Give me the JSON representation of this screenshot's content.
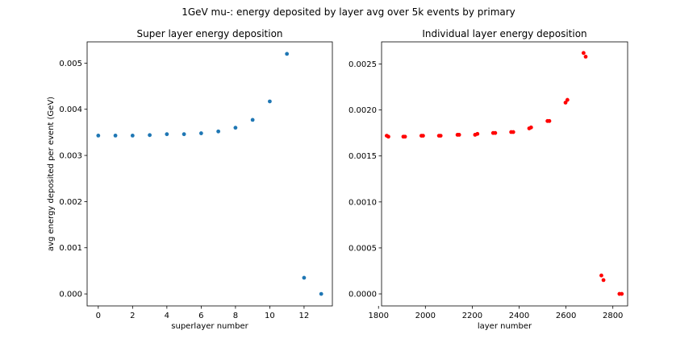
{
  "figure": {
    "suptitle": "1GeV mu-: energy deposited by layer avg over 5k events by primary"
  },
  "chart_data": [
    {
      "type": "scatter",
      "title": "Super layer energy deposition",
      "xlabel": "superlayer number",
      "ylabel": "avg energy deposited per event (GeV)",
      "xlim": [
        -0.65,
        13.65
      ],
      "ylim": [
        -0.00026,
        0.00546
      ],
      "xticks": [
        0,
        2,
        4,
        6,
        8,
        10,
        12
      ],
      "xtick_labels": [
        "0",
        "2",
        "4",
        "6",
        "8",
        "10",
        "12"
      ],
      "yticks": [
        0.0,
        0.001,
        0.002,
        0.003,
        0.004,
        0.005
      ],
      "ytick_labels": [
        "0.000",
        "0.001",
        "0.002",
        "0.003",
        "0.004",
        "0.005"
      ],
      "grid": false,
      "marker_color": "#1f77b4",
      "points": [
        {
          "x": 0,
          "y": 0.00343
        },
        {
          "x": 1,
          "y": 0.00343
        },
        {
          "x": 2,
          "y": 0.00343
        },
        {
          "x": 3,
          "y": 0.00344
        },
        {
          "x": 4,
          "y": 0.00346
        },
        {
          "x": 5,
          "y": 0.00346
        },
        {
          "x": 6,
          "y": 0.00348
        },
        {
          "x": 7,
          "y": 0.00352
        },
        {
          "x": 8,
          "y": 0.0036
        },
        {
          "x": 9,
          "y": 0.00377
        },
        {
          "x": 10,
          "y": 0.00417
        },
        {
          "x": 11,
          "y": 0.0052
        },
        {
          "x": 12,
          "y": 0.00035
        },
        {
          "x": 13,
          "y": 0.0
        }
      ]
    },
    {
      "type": "scatter",
      "title": "Individual layer energy deposition",
      "xlabel": "layer number",
      "ylabel": "",
      "xlim": [
        1813,
        2863
      ],
      "ylim": [
        -0.000131,
        0.002741
      ],
      "xticks": [
        1800,
        2000,
        2200,
        2400,
        2600,
        2800
      ],
      "xtick_labels": [
        "1800",
        "2000",
        "2200",
        "2400",
        "2600",
        "2800"
      ],
      "yticks": [
        0.0,
        0.0005,
        0.001,
        0.0015,
        0.002,
        0.0025
      ],
      "ytick_labels": [
        "0.0000",
        "0.0005",
        "0.0010",
        "0.0015",
        "0.0020",
        "0.0025"
      ],
      "grid": false,
      "marker_color": "#ff0000",
      "points": [
        {
          "x": 1835,
          "y": 0.00172
        },
        {
          "x": 1842,
          "y": 0.00171
        },
        {
          "x": 1906,
          "y": 0.00171
        },
        {
          "x": 1913,
          "y": 0.00171
        },
        {
          "x": 1983,
          "y": 0.00172
        },
        {
          "x": 1990,
          "y": 0.00172
        },
        {
          "x": 2058,
          "y": 0.00172
        },
        {
          "x": 2065,
          "y": 0.00172
        },
        {
          "x": 2137,
          "y": 0.00173
        },
        {
          "x": 2144,
          "y": 0.00173
        },
        {
          "x": 2212,
          "y": 0.00173
        },
        {
          "x": 2222,
          "y": 0.00174
        },
        {
          "x": 2289,
          "y": 0.00175
        },
        {
          "x": 2298,
          "y": 0.00175
        },
        {
          "x": 2366,
          "y": 0.00176
        },
        {
          "x": 2375,
          "y": 0.00176
        },
        {
          "x": 2443,
          "y": 0.0018
        },
        {
          "x": 2451,
          "y": 0.00181
        },
        {
          "x": 2521,
          "y": 0.00188
        },
        {
          "x": 2529,
          "y": 0.00188
        },
        {
          "x": 2598,
          "y": 0.00208
        },
        {
          "x": 2606,
          "y": 0.00211
        },
        {
          "x": 2675,
          "y": 0.00262
        },
        {
          "x": 2684,
          "y": 0.00258
        },
        {
          "x": 2751,
          "y": 0.0002
        },
        {
          "x": 2760,
          "y": 0.00015
        },
        {
          "x": 2828,
          "y": 0.0
        },
        {
          "x": 2838,
          "y": 0.0
        }
      ]
    }
  ]
}
